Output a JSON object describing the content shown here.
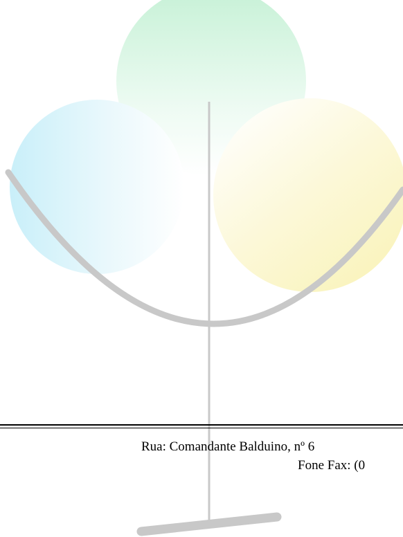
{
  "colors": {
    "page_background": "#ffffff",
    "green_circle": "#c8f2d8",
    "blue_circle": "#c8eefa",
    "yellow_circle": "#fbf6c0",
    "tree_branch": "#c8c8c8",
    "text": "#000000"
  },
  "watermark": {
    "icon": "tree-logo-icon"
  },
  "footer": {
    "address": "Rua: Comandante Balduino, nº 6",
    "phone": "Fone Fax: (0"
  }
}
